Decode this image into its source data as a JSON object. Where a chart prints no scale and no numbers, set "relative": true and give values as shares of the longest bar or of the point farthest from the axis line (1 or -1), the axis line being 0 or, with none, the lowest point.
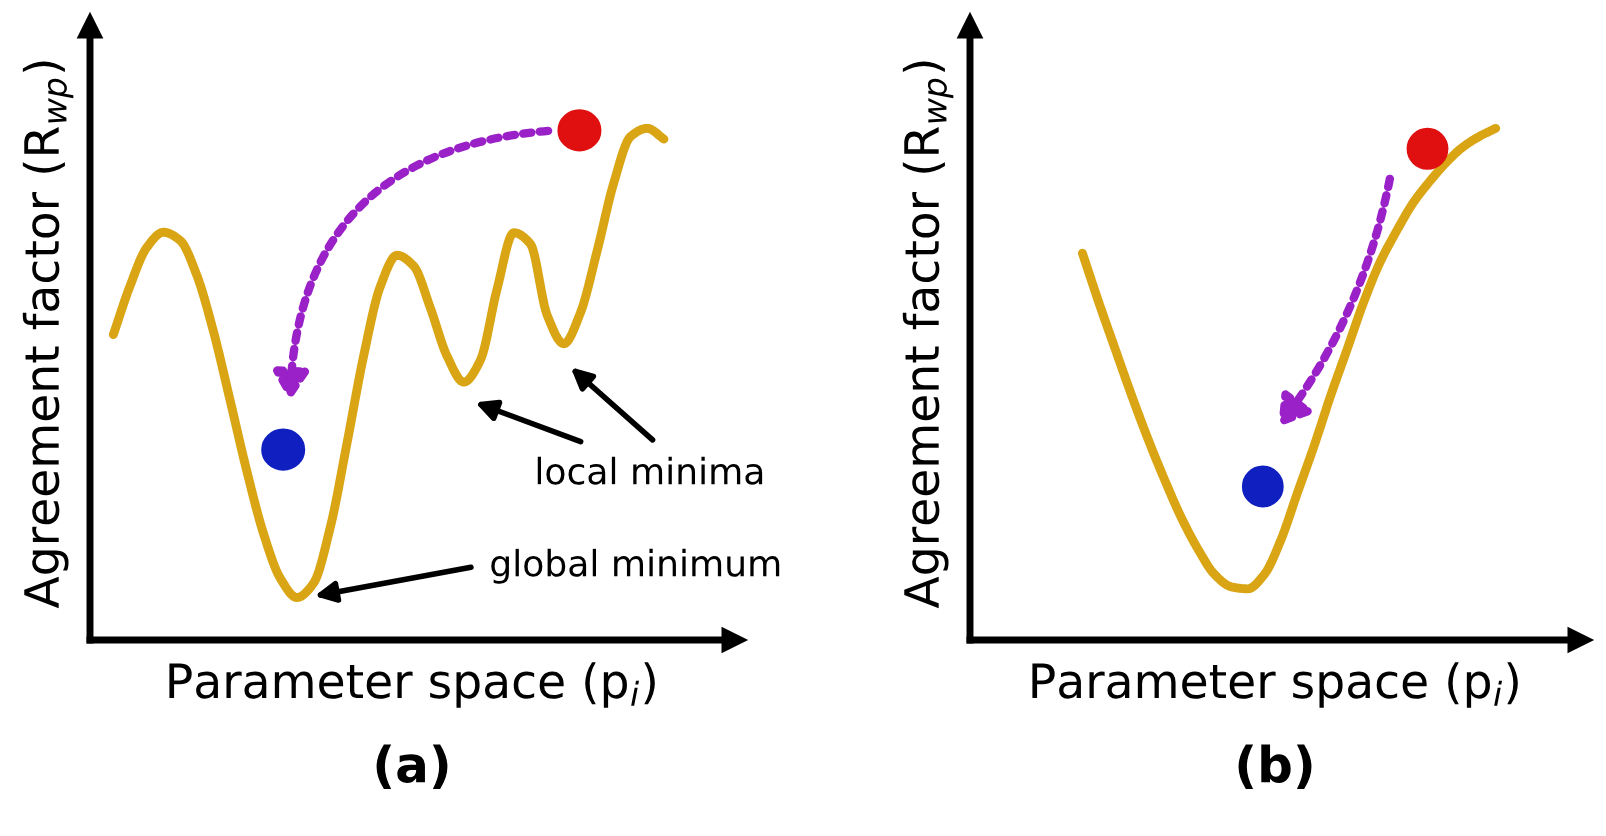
{
  "chart_data": [
    {
      "type": "line",
      "relative": true,
      "title": "(a)",
      "xlabel": "Parameter space (p$_{i}$)",
      "ylabel": "Agreement factor (R$_{wp}$)",
      "categories": [
        null,
        null,
        null,
        null,
        null,
        null,
        null,
        null,
        null,
        null,
        null,
        null,
        null,
        null,
        null,
        null,
        null,
        null,
        null,
        null,
        null,
        null,
        null,
        null,
        null,
        null,
        null,
        null,
        null,
        null,
        null,
        null,
        null,
        null
      ],
      "series": [
        {
          "color": "#d9a514",
          "values": [
            0.597,
            0.692,
            0.767,
            0.797,
            0.781,
            0.713,
            0.603,
            0.468,
            0.33,
            0.208,
            0.121,
            0.083,
            0.111,
            0.22,
            0.384,
            0.555,
            0.691,
            0.752,
            0.731,
            0.649,
            0.555,
            0.504,
            0.547,
            0.686,
            0.796,
            0.774,
            0.635,
            0.579,
            0.64,
            0.761,
            0.894,
            0.984,
            1.0,
            0.979
          ]
        }
      ],
      "annotations": [
        "local minima",
        "global minimum"
      ],
      "grid": false,
      "legend": false,
      "tick_labels": false
    },
    {
      "type": "line",
      "relative": true,
      "title": "(b)",
      "xlabel": "Parameter space (p$_{i}$)",
      "ylabel": "Agreement factor (R$_{wp}$)",
      "categories": [
        null,
        null,
        null,
        null,
        null,
        null,
        null,
        null,
        null,
        null,
        null,
        null,
        null,
        null,
        null,
        null,
        null,
        null,
        null,
        null,
        null,
        null,
        null,
        null,
        null,
        null
      ],
      "series": [
        {
          "color": "#d9a514",
          "values": [
            0.756,
            0.659,
            0.567,
            0.476,
            0.39,
            0.311,
            0.238,
            0.177,
            0.128,
            0.104,
            0.1,
            0.128,
            0.195,
            0.287,
            0.378,
            0.476,
            0.567,
            0.659,
            0.738,
            0.799,
            0.854,
            0.896,
            0.933,
            0.963,
            0.984,
            1.0
          ]
        }
      ],
      "grid": false,
      "legend": false,
      "tick_labels": false
    }
  ]
}
